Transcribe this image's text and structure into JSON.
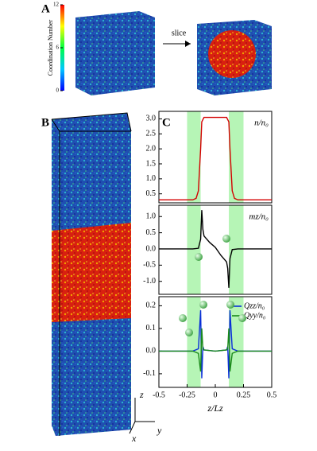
{
  "figure": {
    "panel_labels": [
      "A",
      "B",
      "C"
    ],
    "colorbar": {
      "label": "Coordination Number",
      "lim": [
        0,
        12
      ],
      "ticks": [
        0,
        6,
        12
      ]
    },
    "slice_label": "slice",
    "axis_labels": [
      "z",
      "x",
      "y"
    ]
  },
  "chart_data": [
    {
      "type": "line",
      "annotation": "n/n₀",
      "xlim": [
        -0.5,
        0.5
      ],
      "ylim": [
        0.2,
        3.25
      ],
      "yticks": [
        {
          "value": 3,
          "label": "3.0"
        },
        2.5,
        {
          "value": 2,
          "label": "2.0"
        },
        1.5,
        {
          "value": 1,
          "label": "1.0"
        },
        0.5
      ],
      "shaded": [
        [
          -0.25,
          -0.13
        ],
        [
          0.12,
          0.25
        ]
      ],
      "shade_color": "#b6f5b6",
      "x": [
        -0.5,
        -0.3,
        -0.2,
        -0.17,
        -0.15,
        -0.13,
        -0.12,
        -0.1,
        0,
        0.1,
        0.12,
        0.13,
        0.15,
        0.17,
        0.2,
        0.3,
        0.5
      ],
      "series": [
        {
          "color": "#d40000",
          "values": [
            0.3,
            0.3,
            0.3,
            0.35,
            0.6,
            2.0,
            2.9,
            3.05,
            3.05,
            3.05,
            2.9,
            2.0,
            0.6,
            0.35,
            0.3,
            0.3,
            0.3
          ]
        }
      ]
    },
    {
      "type": "line",
      "annotation": "mz/n₀",
      "xlim": [
        -0.5,
        0.5
      ],
      "ylim": [
        -1.4,
        1.35
      ],
      "yticks": [
        {
          "value": 1,
          "label": "1.0"
        },
        0.5,
        {
          "value": 0,
          "label": "0.0"
        },
        -0.5,
        {
          "value": -1,
          "label": "-1.0"
        }
      ],
      "shaded": [
        [
          -0.25,
          -0.13
        ],
        [
          0.12,
          0.25
        ]
      ],
      "shade_color": "#b6f5b6",
      "x": [
        -0.5,
        -0.2,
        -0.15,
        -0.13,
        -0.12,
        -0.11,
        -0.1,
        -0.05,
        0,
        0.05,
        0.1,
        0.11,
        0.12,
        0.13,
        0.15,
        0.2,
        0.5
      ],
      "series": [
        {
          "color": "#000000",
          "values": [
            0,
            0,
            0.02,
            0.3,
            1.2,
            0.6,
            0.4,
            0.2,
            0.05,
            -0.2,
            -0.4,
            -0.6,
            -1.2,
            -0.3,
            -0.02,
            0,
            0
          ]
        }
      ]
    },
    {
      "type": "line",
      "xlim": [
        -0.5,
        0.5
      ],
      "ylim": [
        -0.16,
        0.24
      ],
      "xlabel": "z/Lz",
      "xticks": [
        -0.5,
        -0.25,
        0,
        0.25,
        0.5
      ],
      "yticks": [
        0.2,
        0.1,
        {
          "value": 0,
          "label": "0.0"
        },
        -0.1
      ],
      "shaded": [
        [
          -0.25,
          -0.13
        ],
        [
          0.12,
          0.25
        ]
      ],
      "shade_color": "#b6f5b6",
      "x": [
        -0.5,
        -0.2,
        -0.15,
        -0.13,
        -0.12,
        -0.11,
        -0.1,
        0,
        0.1,
        0.11,
        0.12,
        0.13,
        0.15,
        0.2,
        0.5
      ],
      "series": [
        {
          "name": "Qzz/n₀",
          "color": "#0a2fd8",
          "values": [
            0,
            0,
            0.01,
            0.18,
            -0.12,
            0.02,
            0.005,
            0,
            0.005,
            0.02,
            -0.12,
            0.18,
            0.01,
            0,
            0
          ]
        },
        {
          "name": "Qyy/n₀",
          "color": "#1a8a1a",
          "values": [
            0,
            0,
            -0.01,
            -0.09,
            0.1,
            0.01,
            0.005,
            0,
            0.005,
            0.01,
            0.1,
            -0.09,
            -0.01,
            0,
            0
          ]
        }
      ]
    }
  ]
}
